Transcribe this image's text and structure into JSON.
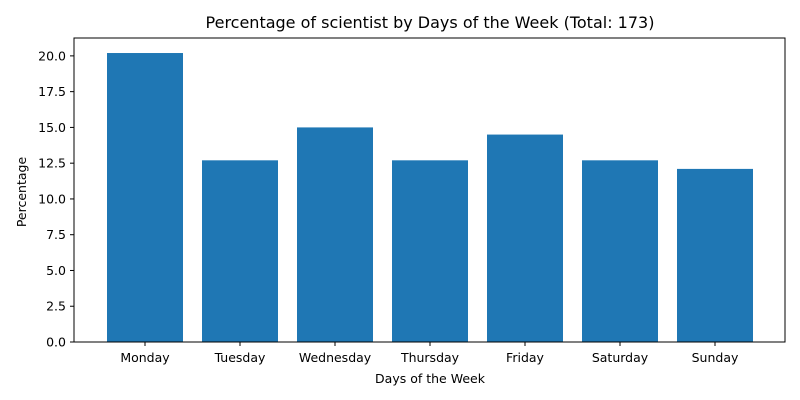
{
  "chart_data": {
    "type": "bar",
    "title": "Percentage of scientist by Days of the Week (Total: 173)",
    "xlabel": "Days of the Week",
    "ylabel": "Percentage",
    "categories": [
      "Monday",
      "Tuesday",
      "Wednesday",
      "Thursday",
      "Friday",
      "Saturday",
      "Sunday"
    ],
    "values": [
      20.2,
      12.7,
      15.0,
      12.7,
      14.5,
      12.7,
      12.1
    ],
    "ylim": [
      0,
      21.25
    ],
    "yticks": [
      0.0,
      2.5,
      5.0,
      7.5,
      10.0,
      12.5,
      15.0,
      17.5,
      20.0
    ],
    "ytick_labels": [
      "0.0",
      "2.5",
      "5.0",
      "7.5",
      "10.0",
      "12.5",
      "15.0",
      "17.5",
      "20.0"
    ],
    "grid": false,
    "bar_color": "#1f77b4"
  }
}
